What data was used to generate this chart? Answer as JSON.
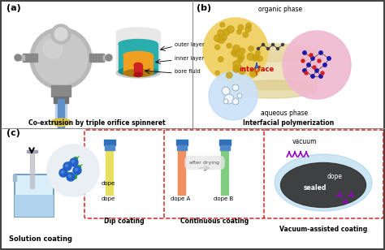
{
  "title_a": "Co-extrusion by triple orifice spinneret",
  "title_b": "Interfacial polymerization",
  "title_c_sub1": "Dip coating",
  "title_c_sub2": "Continuous coating",
  "title_c_sub3": "Vacuum-assisted coating",
  "title_c_main": "Solution coating",
  "label_a": "(a)",
  "label_b": "(b)",
  "label_c": "(c)",
  "outer_layer_color": "#2aadad",
  "inner_layer_color": "#f0a020",
  "bore_fluid_color": "#cc2222",
  "organic_color": "#f0d060",
  "aqueous_color": "#b0ccee",
  "interface_color": "#e8dbb0",
  "interface_bg": "#e8d8a0",
  "polymer_color": "#f0b8d0",
  "dope_yellow": "#e8e060",
  "dope_orange": "#f09060",
  "dope_green": "#80cc80",
  "fiber_blue": "#4080c0",
  "sealed_dark": "#303030",
  "vacuum_blue": "#90c8e8",
  "dashed_red": "#cc1111",
  "border_color": "#444444",
  "metal_color": "#b8b8b8",
  "metal_dark": "#888888",
  "cyl_white": "#e8e8e8",
  "cyl_gray": "#cccccc"
}
